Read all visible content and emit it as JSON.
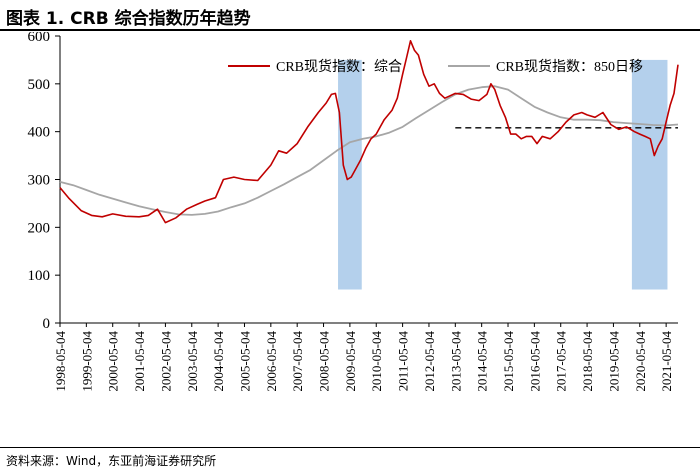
{
  "header": {
    "title": "图表 1.   CRB 综合指数历年趋势"
  },
  "source": {
    "text": "资料来源：Wind，东亚前海证券研究所"
  },
  "colors": {
    "composite": "#c00000",
    "ma850": "#a6a6a6",
    "highlight": "#b4d0ec",
    "reference": "#000000"
  },
  "chart_data": {
    "type": "line",
    "title": "",
    "xlabel": "",
    "ylabel": "",
    "ylim": [
      0,
      600
    ],
    "yticks": [
      0,
      100,
      200,
      300,
      400,
      500,
      600
    ],
    "xticks": [
      "1998-05-04",
      "1999-05-04",
      "2000-05-04",
      "2001-05-04",
      "2002-05-04",
      "2003-05-04",
      "2004-05-04",
      "2005-05-04",
      "2006-05-04",
      "2007-05-04",
      "2008-05-04",
      "2009-05-04",
      "2010-05-04",
      "2011-05-04",
      "2012-05-04",
      "2013-05-04",
      "2014-05-04",
      "2015-05-04",
      "2016-05-04",
      "2017-05-04",
      "2018-05-04",
      "2019-05-04",
      "2020-05-04",
      "2021-05-04"
    ],
    "grid": false,
    "legend_position": "top",
    "series": [
      {
        "name": "CRB现货指数：综合",
        "x": [
          1998.0,
          1998.35,
          1998.8,
          1999.2,
          1999.6,
          2000.0,
          2000.5,
          2001.0,
          2001.35,
          2001.7,
          2002.0,
          2002.4,
          2002.8,
          2003.2,
          2003.5,
          2003.9,
          2004.2,
          2004.6,
          2005.0,
          2005.5,
          2006.0,
          2006.3,
          2006.6,
          2007.0,
          2007.4,
          2007.8,
          2008.1,
          2008.3,
          2008.45,
          2008.6,
          2008.75,
          2008.9,
          2009.05,
          2009.2,
          2009.4,
          2009.6,
          2009.8,
          2010.0,
          2010.3,
          2010.6,
          2010.8,
          2011.0,
          2011.15,
          2011.3,
          2011.45,
          2011.6,
          2011.8,
          2012.0,
          2012.2,
          2012.4,
          2012.6,
          2012.8,
          2013.0,
          2013.3,
          2013.6,
          2013.9,
          2014.2,
          2014.35,
          2014.5,
          2014.7,
          2014.9,
          2015.1,
          2015.3,
          2015.5,
          2015.7,
          2015.9,
          2016.1,
          2016.3,
          2016.6,
          2016.9,
          2017.2,
          2017.5,
          2017.8,
          2018.0,
          2018.3,
          2018.6,
          2018.9,
          2019.2,
          2019.5,
          2019.8,
          2020.0,
          2020.2,
          2020.4,
          2020.55,
          2020.7,
          2020.85,
          2021.0,
          2021.15,
          2021.3,
          2021.45
        ],
        "values": [
          283,
          260,
          235,
          225,
          222,
          228,
          223,
          222,
          225,
          238,
          210,
          220,
          238,
          248,
          255,
          262,
          300,
          305,
          300,
          298,
          330,
          360,
          355,
          375,
          410,
          440,
          460,
          478,
          480,
          440,
          330,
          300,
          305,
          320,
          340,
          365,
          385,
          395,
          425,
          445,
          470,
          520,
          555,
          590,
          570,
          560,
          520,
          495,
          500,
          480,
          470,
          475,
          480,
          478,
          468,
          465,
          478,
          500,
          488,
          455,
          430,
          395,
          395,
          385,
          390,
          390,
          375,
          390,
          385,
          400,
          420,
          435,
          440,
          435,
          430,
          440,
          415,
          405,
          410,
          400,
          395,
          390,
          385,
          350,
          370,
          385,
          420,
          455,
          480,
          540
        ]
      },
      {
        "name": "CRB现货指数：850日移",
        "x": [
          1998.0,
          1998.5,
          1999.0,
          1999.5,
          2000.0,
          2000.5,
          2001.0,
          2001.5,
          2002.0,
          2002.5,
          2003.0,
          2003.5,
          2004.0,
          2004.5,
          2005.0,
          2005.5,
          2006.0,
          2006.5,
          2007.0,
          2007.5,
          2008.0,
          2008.5,
          2009.0,
          2009.5,
          2010.0,
          2010.5,
          2011.0,
          2011.5,
          2012.0,
          2012.5,
          2013.0,
          2013.5,
          2014.0,
          2014.5,
          2015.0,
          2015.5,
          2016.0,
          2016.5,
          2017.0,
          2017.5,
          2018.0,
          2018.5,
          2019.0,
          2019.5,
          2020.0,
          2020.5,
          2021.0,
          2021.45
        ],
        "values": [
          295,
          288,
          278,
          268,
          260,
          252,
          244,
          238,
          232,
          227,
          226,
          228,
          233,
          242,
          250,
          262,
          276,
          290,
          305,
          320,
          340,
          360,
          378,
          385,
          390,
          398,
          410,
          428,
          445,
          462,
          478,
          488,
          493,
          495,
          488,
          470,
          452,
          440,
          430,
          425,
          425,
          424,
          420,
          418,
          416,
          414,
          413,
          415
        ]
      }
    ],
    "highlight_ranges": [
      [
        2008.55,
        2009.45
      ],
      [
        2019.7,
        2021.05
      ]
    ],
    "reference_line": {
      "value": 408,
      "x_range": [
        2013.0,
        2021.45
      ]
    }
  }
}
